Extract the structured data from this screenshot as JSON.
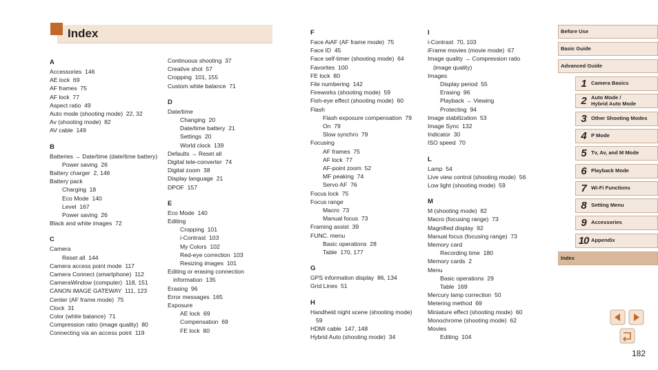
{
  "title": "Index",
  "columns": [
    [
      {
        "letter": "A",
        "entries": [
          {
            "text": "Accessories  146"
          },
          {
            "text": "AE lock  69"
          },
          {
            "text": "AF frames  75"
          },
          {
            "text": "AF lock  77"
          },
          {
            "text": "Aspect ratio  49"
          },
          {
            "text": "Auto mode (shooting mode)  22, 32"
          },
          {
            "text": "Av (shooting mode)  82"
          },
          {
            "text": "AV cable  149"
          }
        ]
      },
      {
        "letter": "B",
        "entries": [
          {
            "text": "Batteries → Date/time (date/time battery)",
            "sub": [
              "Power saving  26"
            ]
          },
          {
            "text": "Battery charger  2, 146"
          },
          {
            "text": "Battery pack",
            "sub": [
              "Charging  18",
              "Eco Mode  140",
              "Level  167",
              "Power saving  26"
            ]
          },
          {
            "text": "Black and white images  72"
          }
        ]
      },
      {
        "letter": "C",
        "entries": [
          {
            "text": "Camera",
            "sub": [
              "Reset all  144"
            ]
          },
          {
            "text": "Camera access point mode  117"
          },
          {
            "text": "Camera Connect (smartphone)  112"
          },
          {
            "text": "CameraWindow (computer)  118, 151"
          },
          {
            "text": "CANON iMAGE GATEWAY  111, 123"
          },
          {
            "text": "Center (AF frame mode)  75"
          },
          {
            "text": "Clock  31"
          },
          {
            "text": "Color (white balance)  71"
          },
          {
            "text": "Compression ratio (image quality)  80"
          },
          {
            "text": "Connecting via an access point  119"
          }
        ]
      }
    ],
    [
      {
        "entries": [
          {
            "text": "Continuous shooting  37"
          },
          {
            "text": "Creative shot  57"
          },
          {
            "text": "Cropping  101, 155"
          },
          {
            "text": "Custom white balance  71"
          }
        ]
      },
      {
        "letter": "D",
        "entries": [
          {
            "text": "Date/time",
            "sub": [
              "Changing  20",
              "Date/time battery  21",
              "Settings  20",
              "World clock  139"
            ]
          },
          {
            "text": "Defaults → Reset all"
          },
          {
            "text": "Digital tele-converter  74"
          },
          {
            "text": "Digital zoom  38"
          },
          {
            "text": "Display language  21"
          },
          {
            "text": "DPOF  157"
          }
        ]
      },
      {
        "letter": "E",
        "entries": [
          {
            "text": "Eco Mode  140"
          },
          {
            "text": "Editing",
            "sub": [
              "Cropping  101",
              "i-Contrast  103",
              "My Colors  102",
              "Red-eye correction  103",
              "Resizing images  101"
            ]
          },
          {
            "text": "Editing or erasing connection information  135"
          },
          {
            "text": "Erasing  96"
          },
          {
            "text": "Error messages  165"
          },
          {
            "text": "Exposure",
            "sub": [
              "AE lock  69",
              "Compensation  69",
              "FE lock  80"
            ]
          }
        ]
      }
    ],
    [
      {
        "letter": "F",
        "entries": [
          {
            "text": "Face AiAF (AF frame mode)  75"
          },
          {
            "text": "Face ID  45"
          },
          {
            "text": "Face self-timer (shooting mode)  64"
          },
          {
            "text": "Favorites  100"
          },
          {
            "text": "FE lock  80"
          },
          {
            "text": "File numbering  142"
          },
          {
            "text": "Fireworks (shooting mode)  59"
          },
          {
            "text": "Fish-eye effect (shooting mode)  60"
          },
          {
            "text": "Flash",
            "sub": [
              "Flash exposure compensation  79",
              "On  79",
              "Slow synchro  79"
            ]
          },
          {
            "text": "Focusing",
            "sub": [
              "AF frames  75",
              "AF lock  77",
              "AF-point zoom  52",
              "MF peaking  74",
              "Servo AF  76"
            ]
          },
          {
            "text": "Focus lock  75"
          },
          {
            "text": "Focus range",
            "sub": [
              "Macro  73",
              "Manual focus  73"
            ]
          },
          {
            "text": "Framing assist  39"
          },
          {
            "text": "FUNC. menu",
            "sub": [
              "Basic operations  28",
              "Table  170, 177"
            ]
          }
        ]
      },
      {
        "letter": "G",
        "entries": [
          {
            "text": "GPS information display  86, 134"
          },
          {
            "text": "Grid Lines  51"
          }
        ]
      },
      {
        "letter": "H",
        "entries": [
          {
            "text": "Handheld night scene (shooting mode)  59"
          },
          {
            "text": "HDMI cable  147, 148"
          },
          {
            "text": "Hybrid Auto (shooting mode)  34"
          }
        ]
      }
    ],
    [
      {
        "letter": "I",
        "entries": [
          {
            "text": "i-Contrast  70, 103"
          },
          {
            "text": "iFrame movies (movie mode)  67"
          },
          {
            "text": "Image quality → Compression ratio (image quality)"
          },
          {
            "text": "Images",
            "sub": [
              "Display period  55",
              "Erasing  96",
              "Playback → Viewing",
              "Protecting  94"
            ]
          },
          {
            "text": "Image stabilization  53"
          },
          {
            "text": "Image Sync  132"
          },
          {
            "text": "Indicator  30"
          },
          {
            "text": "ISO speed  70"
          }
        ]
      },
      {
        "letter": "L",
        "entries": [
          {
            "text": "Lamp  54"
          },
          {
            "text": "Live view control (shooting mode)  56"
          },
          {
            "text": "Low light (shooting mode)  59"
          }
        ]
      },
      {
        "letter": "M",
        "entries": [
          {
            "text": "M (shooting mode)  82"
          },
          {
            "text": "Macro (focusing range)  73"
          },
          {
            "text": "Magnified display  92"
          },
          {
            "text": "Manual focus (focusing range)  73"
          },
          {
            "text": "Memory card",
            "sub": [
              "Recording time  180"
            ]
          },
          {
            "text": "Memory cards  2"
          },
          {
            "text": "Menu",
            "sub": [
              "Basic operations  29",
              "Table  169"
            ]
          },
          {
            "text": "Mercury lamp correction  50"
          },
          {
            "text": "Metering method  69"
          },
          {
            "text": "Miniature effect (shooting mode)  60"
          },
          {
            "text": "Monochrome (shooting mode)  62"
          },
          {
            "text": "Movies",
            "sub": [
              "Editing  104"
            ]
          }
        ]
      }
    ]
  ],
  "nav": [
    "Before Use",
    "Basic Guide",
    "Advanced Guide"
  ],
  "chapters": [
    {
      "number": "1",
      "label": "Camera Basics"
    },
    {
      "number": "2",
      "label": "Auto Mode /\nHybrid Auto Mode"
    },
    {
      "number": "3",
      "label": "Other Shooting Modes"
    },
    {
      "number": "4",
      "label": "P Mode"
    },
    {
      "number": "5",
      "label": "Tv, Av, and M Mode"
    },
    {
      "number": "6",
      "label": "Playback Mode"
    },
    {
      "number": "7",
      "label": "Wi-Fi Functions"
    },
    {
      "number": "8",
      "label": "Setting Menu"
    },
    {
      "number": "9",
      "label": "Accessories"
    },
    {
      "number": "10",
      "label": "Appendix"
    }
  ],
  "current": "Index",
  "page_number": "182"
}
